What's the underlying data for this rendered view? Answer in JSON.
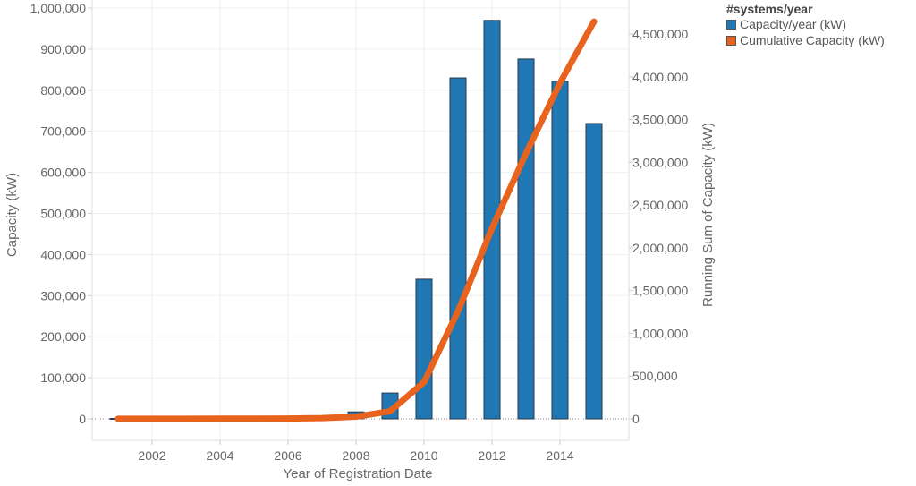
{
  "chart_data": {
    "type": "bar+line",
    "xlabel": "Year of Registration Date",
    "ylabel_left": "Capacity (kW)",
    "ylabel_right": "Running Sum of Capacity (kW)",
    "x": [
      2001,
      2002,
      2003,
      2004,
      2005,
      2006,
      2007,
      2008,
      2009,
      2010,
      2011,
      2012,
      2013,
      2014,
      2015
    ],
    "x_ticks": [
      "2002",
      "2004",
      "2006",
      "2008",
      "2010",
      "2012",
      "2014"
    ],
    "y_left_ticks": [
      "0",
      "100,000",
      "200,000",
      "300,000",
      "400,000",
      "500,000",
      "600,000",
      "700,000",
      "800,000",
      "900,000",
      "1,000,000"
    ],
    "y_right_ticks": [
      "0",
      "500,000",
      "1,000,000",
      "1,500,000",
      "2,000,000",
      "2,500,000",
      "3,000,000",
      "3,500,000",
      "4,000,000",
      "4,500,000"
    ],
    "ylim_left": [
      0,
      1000000
    ],
    "ylim_right": [
      0,
      4700000
    ],
    "grid": true,
    "legend": {
      "title": "#systems/year",
      "placement": "top-right",
      "entries": [
        "Capacity/year (kW)",
        "Cumulative Capacity (kW)"
      ]
    },
    "series": [
      {
        "name": "Capacity/year (kW)",
        "type": "bar",
        "axis": "left",
        "color": "#1f77b4",
        "values": [
          1000,
          200,
          300,
          500,
          700,
          1000,
          5000,
          17000,
          63000,
          340000,
          830000,
          970000,
          876000,
          822000,
          719000
        ]
      },
      {
        "name": "Cumulative Capacity (kW)",
        "type": "line",
        "axis": "right",
        "color": "#e8631d",
        "values": [
          1000,
          1200,
          1500,
          2000,
          2700,
          3700,
          8700,
          25700,
          88700,
          428700,
          1258700,
          2228700,
          3104700,
          3926700,
          4645700
        ]
      }
    ]
  }
}
